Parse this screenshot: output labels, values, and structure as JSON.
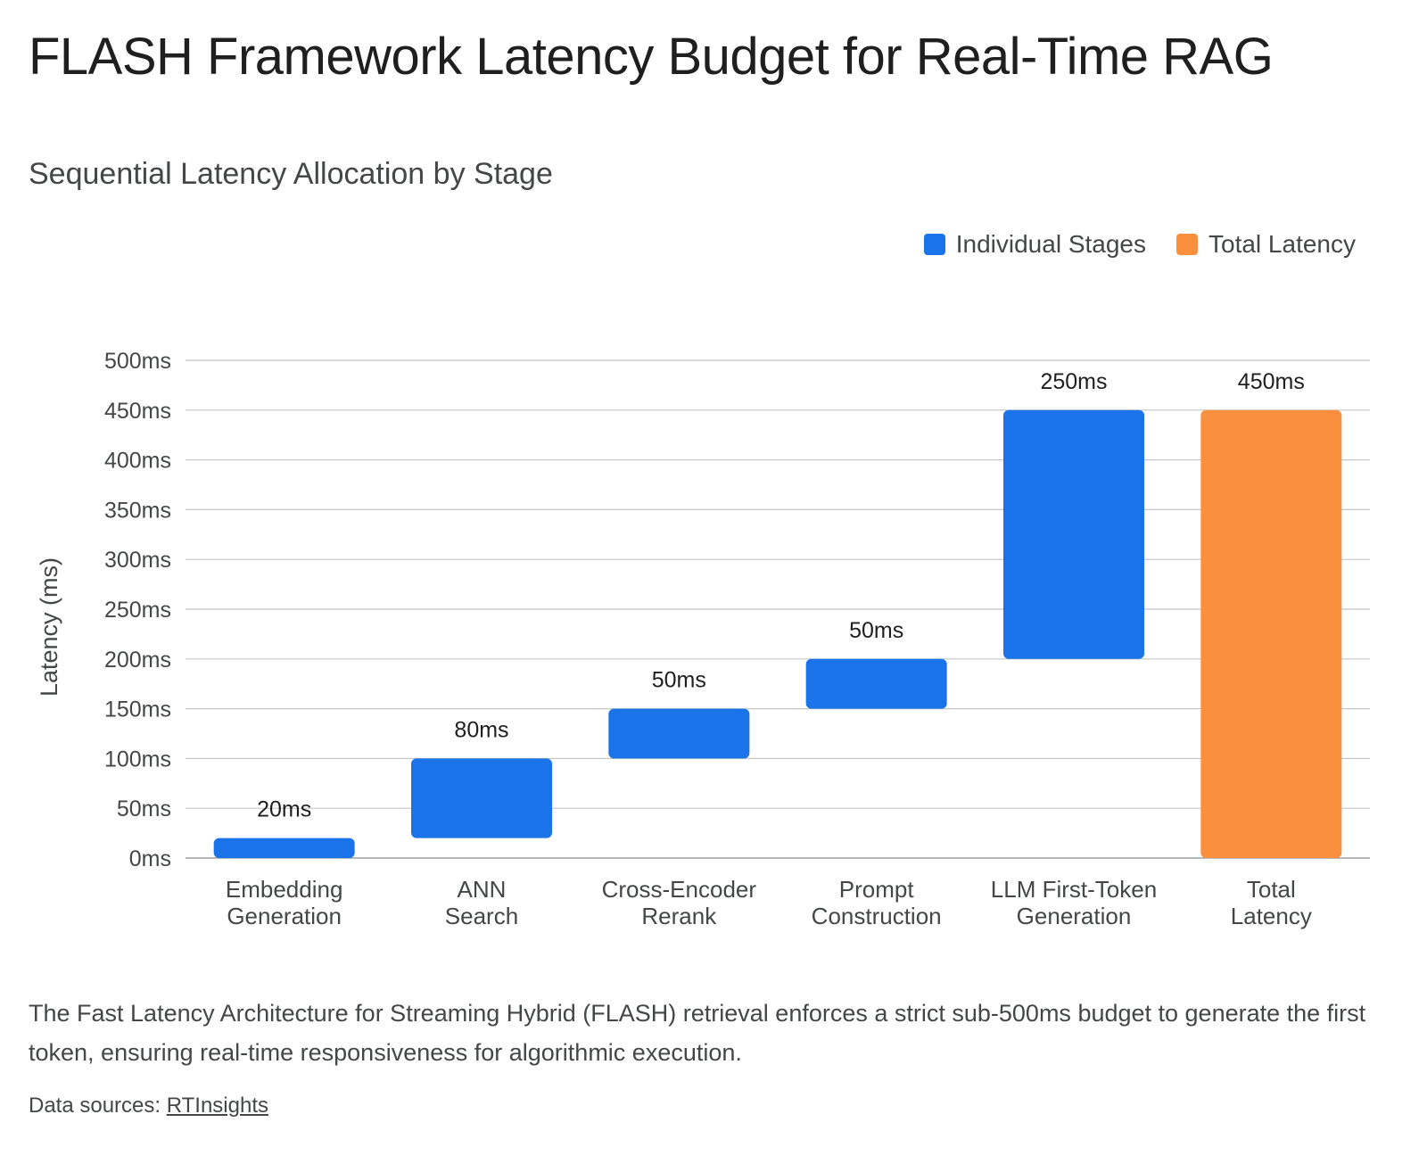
{
  "title": "FLASH Framework Latency Budget for Real-Time RAG",
  "subtitle": "Sequential Latency Allocation by Stage",
  "description": "The Fast Latency Architecture for Streaming Hybrid (FLASH) retrieval enforces a strict sub-500ms budget to generate the first token, ensuring real-time responsiveness for algorithmic execution.",
  "sources": {
    "prefix": "Data sources: ",
    "link_label": "RTInsights"
  },
  "colors": {
    "stage": "#1a73e8",
    "total": "#fa903e",
    "grid": "#c4c7c5",
    "axis_text": "#444746",
    "label_text": "#1f1f1f"
  },
  "chart_data": {
    "type": "bar",
    "variant": "waterfall",
    "title": "Sequential Latency Allocation by Stage",
    "ylabel": "Latency (ms)",
    "xlabel": "",
    "ylim": [
      0,
      500
    ],
    "y_ticks": [
      0,
      50,
      100,
      150,
      200,
      250,
      300,
      350,
      400,
      450,
      500
    ],
    "y_tick_suffix": "ms",
    "grid": true,
    "legend": {
      "placement": "top-right",
      "entries": [
        {
          "label": "Individual Stages",
          "color": "#1a73e8"
        },
        {
          "label": "Total Latency",
          "color": "#fa903e"
        }
      ]
    },
    "categories": [
      [
        "Embedding",
        "Generation"
      ],
      [
        "ANN",
        "Search"
      ],
      [
        "Cross-Encoder",
        "Rerank"
      ],
      [
        "Prompt",
        "Construction"
      ],
      [
        "LLM First-Token",
        "Generation"
      ],
      [
        "Total",
        "Latency"
      ]
    ],
    "bars": [
      {
        "start": 0,
        "end": 20,
        "label": "20ms",
        "kind": "stage"
      },
      {
        "start": 20,
        "end": 100,
        "label": "80ms",
        "kind": "stage"
      },
      {
        "start": 100,
        "end": 150,
        "label": "50ms",
        "kind": "stage"
      },
      {
        "start": 150,
        "end": 200,
        "label": "50ms",
        "kind": "stage"
      },
      {
        "start": 200,
        "end": 450,
        "label": "250ms",
        "kind": "stage"
      },
      {
        "start": 0,
        "end": 450,
        "label": "450ms",
        "kind": "total"
      }
    ]
  }
}
